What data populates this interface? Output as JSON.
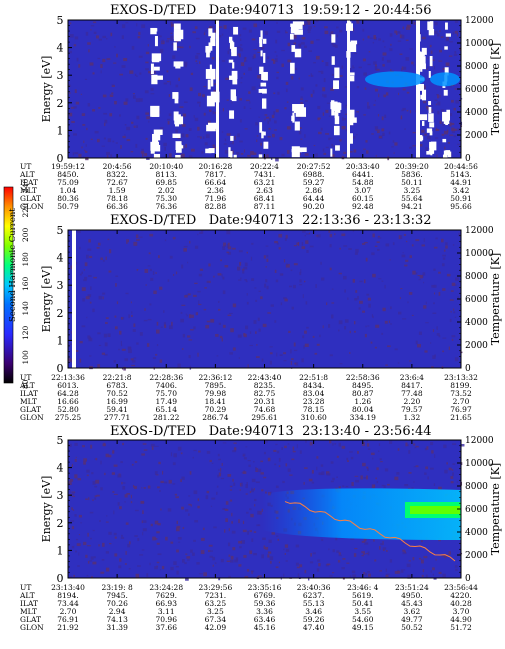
{
  "chart_data": [
    {
      "type": "heatmap",
      "title": "EXOS-D/TED   Date:940713  19:59:12 - 20:44:56",
      "ylabel": "Energy [eV]",
      "y2label": "Temperature [K]",
      "ylim": [
        0,
        5
      ],
      "y2lim": [
        0,
        12000
      ],
      "yticks": [
        "0",
        "1",
        "2",
        "3",
        "4",
        "5"
      ],
      "y2ticks": [
        "0",
        "2000",
        "4000",
        "6000",
        "8000",
        "10000",
        "12000"
      ],
      "ephemeris": {
        "UT": [
          "19:59:12",
          "20:4:56",
          "20:10:40",
          "20:16:28",
          "20:22:4",
          "20:27:52",
          "20:33:40",
          "20:39:20",
          "20:44:56"
        ],
        "ALT": [
          "8450.",
          "8322.",
          "8113.",
          "7817.",
          "7431.",
          "6988.",
          "6441.",
          "5836.",
          "5143."
        ],
        "ILAT": [
          "75.09",
          "72.67",
          "69.85",
          "66.64",
          "63.21",
          "59.27",
          "54.88",
          "50.11",
          "44.91"
        ],
        "MLT": [
          "1.04",
          "1.59",
          "2.02",
          "2.36",
          "2.63",
          "2.86",
          "3.07",
          "3.25",
          "3.42"
        ],
        "GLAT": [
          "80.36",
          "78.18",
          "75.30",
          "71.96",
          "68.41",
          "64.44",
          "60.15",
          "55.64",
          "50.91"
        ],
        "GLON": [
          "50.79",
          "66.36",
          "76.36",
          "82.88",
          "87.11",
          "90.20",
          "92.48",
          "94.21",
          "95.66"
        ]
      }
    },
    {
      "type": "heatmap",
      "title": "EXOS-D/TED   Date:940713  22:13:36 - 23:13:32",
      "ylabel": "Energy [eV]",
      "y2label": "Temperature [K]",
      "ylim": [
        0,
        5
      ],
      "y2lim": [
        0,
        12000
      ],
      "yticks": [
        "0",
        "1",
        "2",
        "3",
        "4",
        "5"
      ],
      "y2ticks": [
        "0",
        "2000",
        "4000",
        "6000",
        "8000",
        "10000",
        "12000"
      ],
      "ephemeris": {
        "UT": [
          "22:13:36",
          "22:21:8",
          "22:28:36",
          "22:36:12",
          "22:43:40",
          "22:51:8",
          "22:58:36",
          "23:6:4",
          "23:13:32"
        ],
        "ALT": [
          "6013.",
          "6783.",
          "7406.",
          "7895.",
          "8235.",
          "8434.",
          "8495.",
          "8417.",
          "8199."
        ],
        "ILAT": [
          "64.28",
          "70.52",
          "75.70",
          "79.98",
          "82.75",
          "83.04",
          "80.87",
          "77.48",
          "73.52"
        ],
        "MLT": [
          "16.66",
          "16.99",
          "17.49",
          "18.41",
          "20.31",
          "23.28",
          "1.26",
          "2.20",
          "2.70"
        ],
        "GLAT": [
          "52.80",
          "59.41",
          "65.14",
          "70.29",
          "74.68",
          "78.15",
          "80.04",
          "79.57",
          "76.97"
        ],
        "GLON": [
          "275.25",
          "277.71",
          "281.22",
          "286.74",
          "295.61",
          "310.60",
          "334.19",
          "1.32",
          "21.65"
        ]
      }
    },
    {
      "type": "heatmap",
      "title": "EXOS-D/TED   Date:940713  23:13:40 - 23:56:44",
      "ylabel": "Energy [eV]",
      "y2label": "Temperature [K]",
      "ylim": [
        0,
        5
      ],
      "y2lim": [
        0,
        12000
      ],
      "yticks": [
        "0",
        "1",
        "2",
        "3",
        "4",
        "5"
      ],
      "y2ticks": [
        "0",
        "2000",
        "4000",
        "6000",
        "8000",
        "10000",
        "12000"
      ],
      "ephemeris": {
        "UT": [
          "23:13:40",
          "23:19: 8",
          "23:24:28",
          "23:29:56",
          "23:35:16",
          "23:40:36",
          "23:46: 4",
          "23:51:24",
          "23:56:44"
        ],
        "ALT": [
          "8194.",
          "7945.",
          "7629.",
          "7231.",
          "6769.",
          "6237.",
          "5619.",
          "4950.",
          "4220."
        ],
        "ILAT": [
          "73.44",
          "70.26",
          "66.93",
          "63.25",
          "59.36",
          "55.13",
          "50.41",
          "45.43",
          "40.28"
        ],
        "MLT": [
          "2.70",
          "2.94",
          "3.11",
          "3.25",
          "3.36",
          "3.46",
          "3.55",
          "3.62",
          "3.70"
        ],
        "GLAT": [
          "76.91",
          "74.13",
          "70.96",
          "67.34",
          "63.46",
          "59.26",
          "54.60",
          "49.77",
          "44.90"
        ],
        "GLON": [
          "21.92",
          "31.39",
          "37.66",
          "42.09",
          "45.16",
          "47.40",
          "49.15",
          "50.52",
          "51.72"
        ]
      }
    }
  ],
  "colorbar": {
    "title": "Second Harmonic Current",
    "ticks": [
      "80",
      "100",
      "120",
      "140",
      "160",
      "180",
      "200",
      "220",
      "240"
    ],
    "colors": [
      "#000000",
      "#3a0070",
      "#2a2aff",
      "#0070ff",
      "#00c8ff",
      "#00ff80",
      "#80ff00",
      "#ffff00",
      "#ff9000",
      "#ff0000"
    ]
  },
  "eph_labels": [
    "UT",
    "ALT",
    "ILAT",
    "MLT",
    "GLAT",
    "GLON"
  ]
}
